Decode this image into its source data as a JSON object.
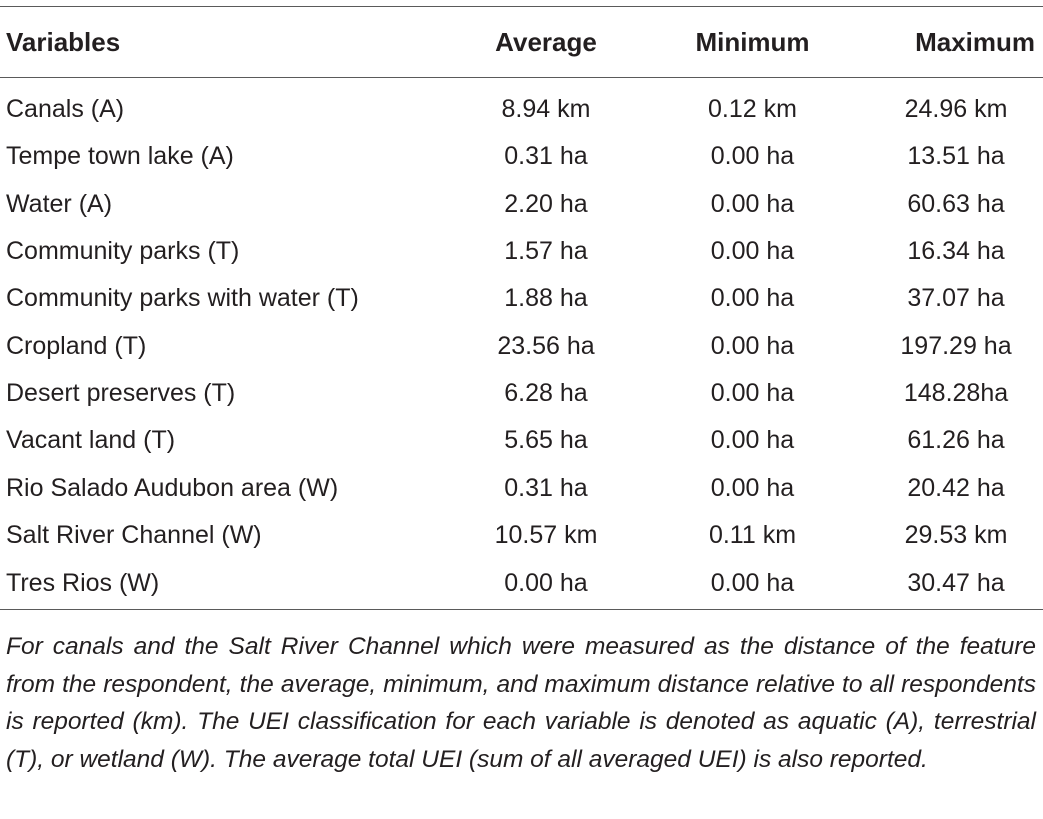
{
  "table": {
    "headers": [
      "Variables",
      "Average",
      "Minimum",
      "Maximum"
    ],
    "rows": [
      [
        "Canals (A)",
        "8.94 km",
        "0.12 km",
        "24.96 km"
      ],
      [
        "Tempe town lake (A)",
        "0.31 ha",
        "0.00 ha",
        "13.51 ha"
      ],
      [
        "Water (A)",
        "2.20 ha",
        "0.00 ha",
        "60.63 ha"
      ],
      [
        "Community parks (T)",
        "1.57 ha",
        "0.00 ha",
        "16.34 ha"
      ],
      [
        "Community parks with water (T)",
        "1.88 ha",
        "0.00 ha",
        "37.07 ha"
      ],
      [
        "Cropland (T)",
        "23.56 ha",
        "0.00 ha",
        "197.29 ha"
      ],
      [
        "Desert preserves (T)",
        "6.28 ha",
        "0.00 ha",
        "148.28ha"
      ],
      [
        "Vacant land (T)",
        "5.65 ha",
        "0.00 ha",
        "61.26 ha"
      ],
      [
        "Rio Salado Audubon area (W)",
        "0.31 ha",
        "0.00 ha",
        "20.42 ha"
      ],
      [
        "Salt River Channel (W)",
        "10.57 km",
        "0.11 km",
        "29.53 km"
      ],
      [
        "Tres Rios (W)",
        "0.00 ha",
        "0.00 ha",
        "30.47 ha"
      ]
    ]
  },
  "footnote": "For canals and the Salt River Channel which were measured as the distance of the feature from the respondent, the average, minimum, and maximum distance relative to all respondents is reported (km). The UEI classification for each variable is denoted as aquatic (A), terrestrial (T), or wetland (W). The average total UEI (sum of all averaged UEI) is also reported."
}
